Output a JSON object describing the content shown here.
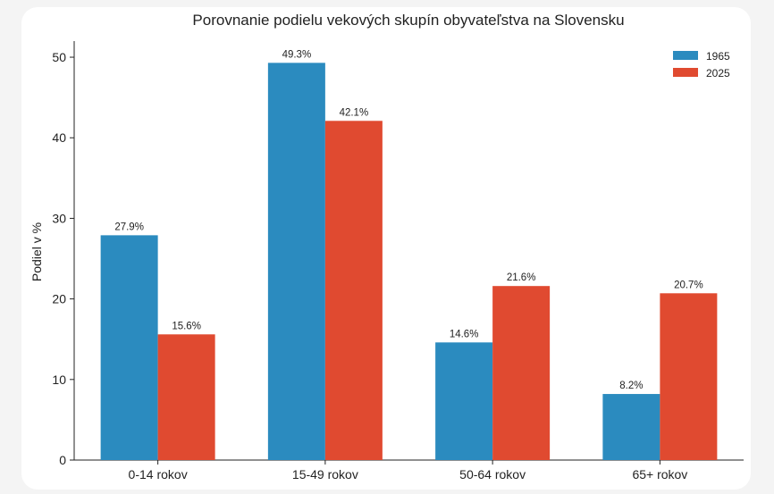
{
  "chart_data": {
    "type": "bar",
    "title": "Porovnanie podielu vekových skupín obyvateľstva na Slovensku",
    "xlabel": "",
    "ylabel": "Podiel v %",
    "ylim": [
      0,
      52
    ],
    "yticks": [
      0,
      10,
      20,
      30,
      40,
      50
    ],
    "grid": false,
    "legend_position": "top-right",
    "categories": [
      "0-14 rokov",
      "15-49 rokov",
      "50-64 rokov",
      "65+ rokov"
    ],
    "series": [
      {
        "name": "1965",
        "color": "#2b8bbf",
        "values": [
          27.9,
          49.3,
          14.6,
          8.2
        ],
        "labels": [
          "27.9%",
          "49.3%",
          "14.6%",
          "8.2%"
        ]
      },
      {
        "name": "2025",
        "color": "#e04a30",
        "values": [
          15.6,
          42.1,
          21.6,
          20.7
        ],
        "labels": [
          "15.6%",
          "42.1%",
          "21.6%",
          "20.7%"
        ]
      }
    ]
  }
}
